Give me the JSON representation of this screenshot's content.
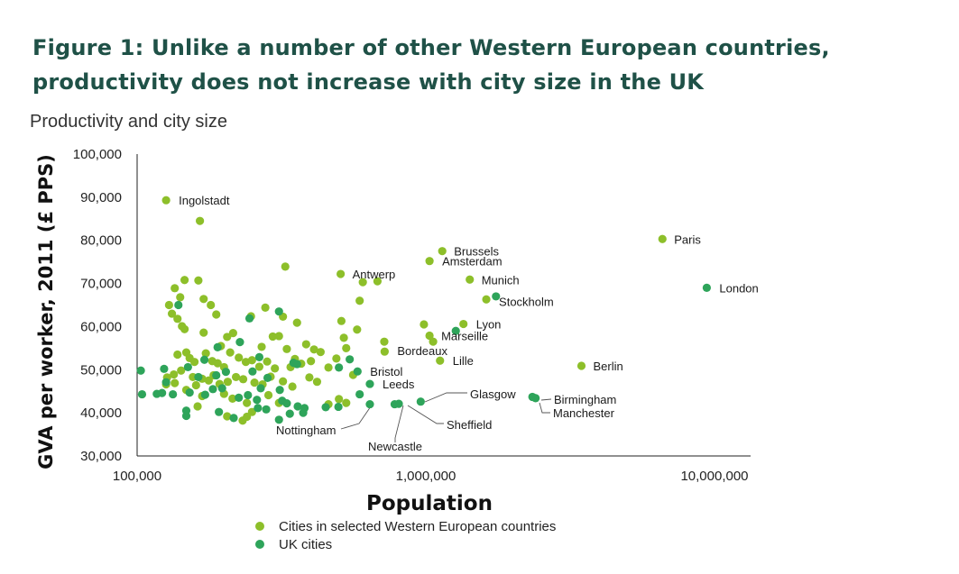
{
  "title_line1": "Figure 1: Unlike a number of other Western European countries,",
  "title_line2": "productivity does not increase with city size in the UK",
  "subtitle": "Productivity and city size",
  "colors": {
    "eu": "#8dbf2a",
    "uk": "#2ea45a",
    "axis": "#222222",
    "leader": "#555555"
  },
  "chart_data": {
    "type": "scatter",
    "title": "Productivity and city size",
    "xlabel": "Population",
    "ylabel": "GVA per worker, 2011 (£ PPS)",
    "xscale": "log",
    "xlim": [
      100000,
      10000000
    ],
    "ylim": [
      30000,
      100000
    ],
    "xticks": [
      100000,
      1000000,
      10000000
    ],
    "xtick_labels": [
      "100,000",
      "1,000,000",
      "10,000,000"
    ],
    "yticks": [
      30000,
      40000,
      50000,
      60000,
      70000,
      80000,
      90000,
      100000
    ],
    "ytick_labels": [
      "30,000",
      "40,000",
      "50,000",
      "60,000",
      "70,000",
      "80,000",
      "90,000",
      "100,000"
    ],
    "grid": false,
    "legend_position": "bottom",
    "series": [
      {
        "name": "Cities in selected Western European countries",
        "color": "#8dbf2a",
        "points": [
          {
            "x": 126000,
            "y": 89300,
            "label": "Ingolstadt"
          },
          {
            "x": 165000,
            "y": 84500
          },
          {
            "x": 6600000,
            "y": 80300,
            "label": "Paris"
          },
          {
            "x": 1140000,
            "y": 77500,
            "label": "Brussels"
          },
          {
            "x": 1030000,
            "y": 75200,
            "label": "Amsterdam"
          },
          {
            "x": 1420000,
            "y": 70900,
            "label": "Munich"
          },
          {
            "x": 1620000,
            "y": 66300,
            "label": "Stockholm"
          },
          {
            "x": 1350000,
            "y": 60600,
            "label": "Lyon"
          },
          {
            "x": 1030000,
            "y": 57900,
            "label": "Marseille"
          },
          {
            "x": 720000,
            "y": 54200,
            "label": "Bordeaux"
          },
          {
            "x": 1120000,
            "y": 52100,
            "label": "Lille"
          },
          {
            "x": 3460000,
            "y": 50900,
            "label": "Berlin"
          },
          {
            "x": 507000,
            "y": 72200,
            "label": "Antwerp"
          },
          {
            "x": 680000,
            "y": 70500
          },
          {
            "x": 605000,
            "y": 70300
          },
          {
            "x": 985000,
            "y": 60500
          },
          {
            "x": 1060000,
            "y": 56500
          },
          {
            "x": 718000,
            "y": 56500
          },
          {
            "x": 590000,
            "y": 66000
          },
          {
            "x": 326000,
            "y": 73900
          },
          {
            "x": 129000,
            "y": 65000
          },
          {
            "x": 135000,
            "y": 68900
          },
          {
            "x": 141000,
            "y": 66800
          },
          {
            "x": 146000,
            "y": 70800
          },
          {
            "x": 163000,
            "y": 70700
          },
          {
            "x": 170000,
            "y": 66400
          },
          {
            "x": 180000,
            "y": 65000
          },
          {
            "x": 188000,
            "y": 62800
          },
          {
            "x": 132000,
            "y": 63000
          },
          {
            "x": 138000,
            "y": 61800
          },
          {
            "x": 146000,
            "y": 59400
          },
          {
            "x": 143000,
            "y": 60100
          },
          {
            "x": 170000,
            "y": 58600
          },
          {
            "x": 195000,
            "y": 55500
          },
          {
            "x": 205000,
            "y": 57600
          },
          {
            "x": 215000,
            "y": 58500
          },
          {
            "x": 248000,
            "y": 62400
          },
          {
            "x": 278000,
            "y": 64400
          },
          {
            "x": 320000,
            "y": 62300
          },
          {
            "x": 358000,
            "y": 60900
          },
          {
            "x": 510000,
            "y": 61300
          },
          {
            "x": 578000,
            "y": 59300
          },
          {
            "x": 295000,
            "y": 57700
          },
          {
            "x": 270000,
            "y": 55300
          },
          {
            "x": 310000,
            "y": 57800
          },
          {
            "x": 385000,
            "y": 55900
          },
          {
            "x": 410000,
            "y": 54700
          },
          {
            "x": 432000,
            "y": 54100
          },
          {
            "x": 352000,
            "y": 52500
          },
          {
            "x": 330000,
            "y": 54800
          },
          {
            "x": 520000,
            "y": 57400
          },
          {
            "x": 530000,
            "y": 55000
          },
          {
            "x": 148000,
            "y": 54000
          },
          {
            "x": 138000,
            "y": 53500
          },
          {
            "x": 152000,
            "y": 52700
          },
          {
            "x": 158000,
            "y": 51800
          },
          {
            "x": 173000,
            "y": 53800
          },
          {
            "x": 182000,
            "y": 52000
          },
          {
            "x": 190000,
            "y": 51500
          },
          {
            "x": 200000,
            "y": 50600
          },
          {
            "x": 210000,
            "y": 54000
          },
          {
            "x": 225000,
            "y": 52800
          },
          {
            "x": 238000,
            "y": 51800
          },
          {
            "x": 250000,
            "y": 52200
          },
          {
            "x": 265000,
            "y": 50700
          },
          {
            "x": 282000,
            "y": 51900
          },
          {
            "x": 300000,
            "y": 50300
          },
          {
            "x": 340000,
            "y": 50600
          },
          {
            "x": 370000,
            "y": 51400
          },
          {
            "x": 400000,
            "y": 52000
          },
          {
            "x": 460000,
            "y": 50500
          },
          {
            "x": 490000,
            "y": 52600
          },
          {
            "x": 560000,
            "y": 48800
          },
          {
            "x": 127000,
            "y": 48200
          },
          {
            "x": 134000,
            "y": 48900
          },
          {
            "x": 142000,
            "y": 49800
          },
          {
            "x": 156000,
            "y": 48300
          },
          {
            "x": 168000,
            "y": 47900
          },
          {
            "x": 177000,
            "y": 47500
          },
          {
            "x": 184000,
            "y": 48700
          },
          {
            "x": 193000,
            "y": 46700
          },
          {
            "x": 206000,
            "y": 47200
          },
          {
            "x": 220000,
            "y": 48300
          },
          {
            "x": 233000,
            "y": 47800
          },
          {
            "x": 255000,
            "y": 47000
          },
          {
            "x": 272000,
            "y": 46600
          },
          {
            "x": 290000,
            "y": 48400
          },
          {
            "x": 320000,
            "y": 47300
          },
          {
            "x": 345000,
            "y": 46100
          },
          {
            "x": 395000,
            "y": 48200
          },
          {
            "x": 420000,
            "y": 47200
          },
          {
            "x": 126000,
            "y": 46600
          },
          {
            "x": 135000,
            "y": 46900
          },
          {
            "x": 160000,
            "y": 46400
          },
          {
            "x": 168000,
            "y": 43900
          },
          {
            "x": 162000,
            "y": 41500
          },
          {
            "x": 200000,
            "y": 44400
          },
          {
            "x": 214000,
            "y": 43300
          },
          {
            "x": 240000,
            "y": 42300
          },
          {
            "x": 205000,
            "y": 39200
          },
          {
            "x": 240000,
            "y": 39100
          },
          {
            "x": 232000,
            "y": 38200
          },
          {
            "x": 285000,
            "y": 44100
          },
          {
            "x": 310000,
            "y": 42300
          },
          {
            "x": 250000,
            "y": 40200
          },
          {
            "x": 460000,
            "y": 42000
          },
          {
            "x": 500000,
            "y": 43200
          },
          {
            "x": 530000,
            "y": 42300
          },
          {
            "x": 148000,
            "y": 45300
          }
        ]
      },
      {
        "name": "UK cities",
        "color": "#2ea45a",
        "points": [
          {
            "x": 9400000,
            "y": 69000,
            "label": "London"
          },
          {
            "x": 1750000,
            "y": 67000
          },
          {
            "x": 1270000,
            "y": 59000
          },
          {
            "x": 2340000,
            "y": 43700,
            "label": "Birmingham"
          },
          {
            "x": 2400000,
            "y": 43400,
            "label": "Manchester"
          },
          {
            "x": 960000,
            "y": 42600,
            "label": "Glasgow"
          },
          {
            "x": 806000,
            "y": 42100,
            "label": "Sheffield"
          },
          {
            "x": 780000,
            "y": 42000,
            "label": "Newcastle"
          },
          {
            "x": 640000,
            "y": 42000,
            "label": "Nottingham"
          },
          {
            "x": 640000,
            "y": 46700,
            "label": "Leeds"
          },
          {
            "x": 580000,
            "y": 49600,
            "label": "Bristol"
          },
          {
            "x": 545000,
            "y": 52400
          },
          {
            "x": 500000,
            "y": 50500
          },
          {
            "x": 310000,
            "y": 63500
          },
          {
            "x": 245000,
            "y": 61900
          },
          {
            "x": 139000,
            "y": 65000
          },
          {
            "x": 227000,
            "y": 56400
          },
          {
            "x": 190000,
            "y": 55200
          },
          {
            "x": 171000,
            "y": 52300
          },
          {
            "x": 203000,
            "y": 49500
          },
          {
            "x": 188000,
            "y": 48700
          },
          {
            "x": 163000,
            "y": 48300
          },
          {
            "x": 251000,
            "y": 49600
          },
          {
            "x": 283000,
            "y": 48100
          },
          {
            "x": 103000,
            "y": 49800
          },
          {
            "x": 124000,
            "y": 50200
          },
          {
            "x": 150000,
            "y": 50600
          },
          {
            "x": 126000,
            "y": 47100
          },
          {
            "x": 122000,
            "y": 44600
          },
          {
            "x": 117000,
            "y": 44400
          },
          {
            "x": 104000,
            "y": 44300
          },
          {
            "x": 133000,
            "y": 44300
          },
          {
            "x": 152000,
            "y": 44700
          },
          {
            "x": 172000,
            "y": 44200
          },
          {
            "x": 183000,
            "y": 45500
          },
          {
            "x": 197000,
            "y": 45700
          },
          {
            "x": 225000,
            "y": 43500
          },
          {
            "x": 242000,
            "y": 44100
          },
          {
            "x": 260000,
            "y": 43000
          },
          {
            "x": 318000,
            "y": 42800
          },
          {
            "x": 330000,
            "y": 42200
          },
          {
            "x": 360000,
            "y": 41500
          },
          {
            "x": 380000,
            "y": 41100
          },
          {
            "x": 148000,
            "y": 40500
          },
          {
            "x": 148000,
            "y": 39300
          },
          {
            "x": 192000,
            "y": 40200
          },
          {
            "x": 216000,
            "y": 38800
          },
          {
            "x": 262000,
            "y": 41100
          },
          {
            "x": 280000,
            "y": 40800
          },
          {
            "x": 338000,
            "y": 39800
          },
          {
            "x": 310000,
            "y": 38400
          },
          {
            "x": 376000,
            "y": 40000
          },
          {
            "x": 348000,
            "y": 51600
          },
          {
            "x": 358000,
            "y": 51300
          },
          {
            "x": 312000,
            "y": 45300
          },
          {
            "x": 268000,
            "y": 45700
          },
          {
            "x": 590000,
            "y": 44300
          },
          {
            "x": 450000,
            "y": 41300
          },
          {
            "x": 498000,
            "y": 41400
          },
          {
            "x": 265000,
            "y": 52900
          }
        ]
      }
    ]
  }
}
